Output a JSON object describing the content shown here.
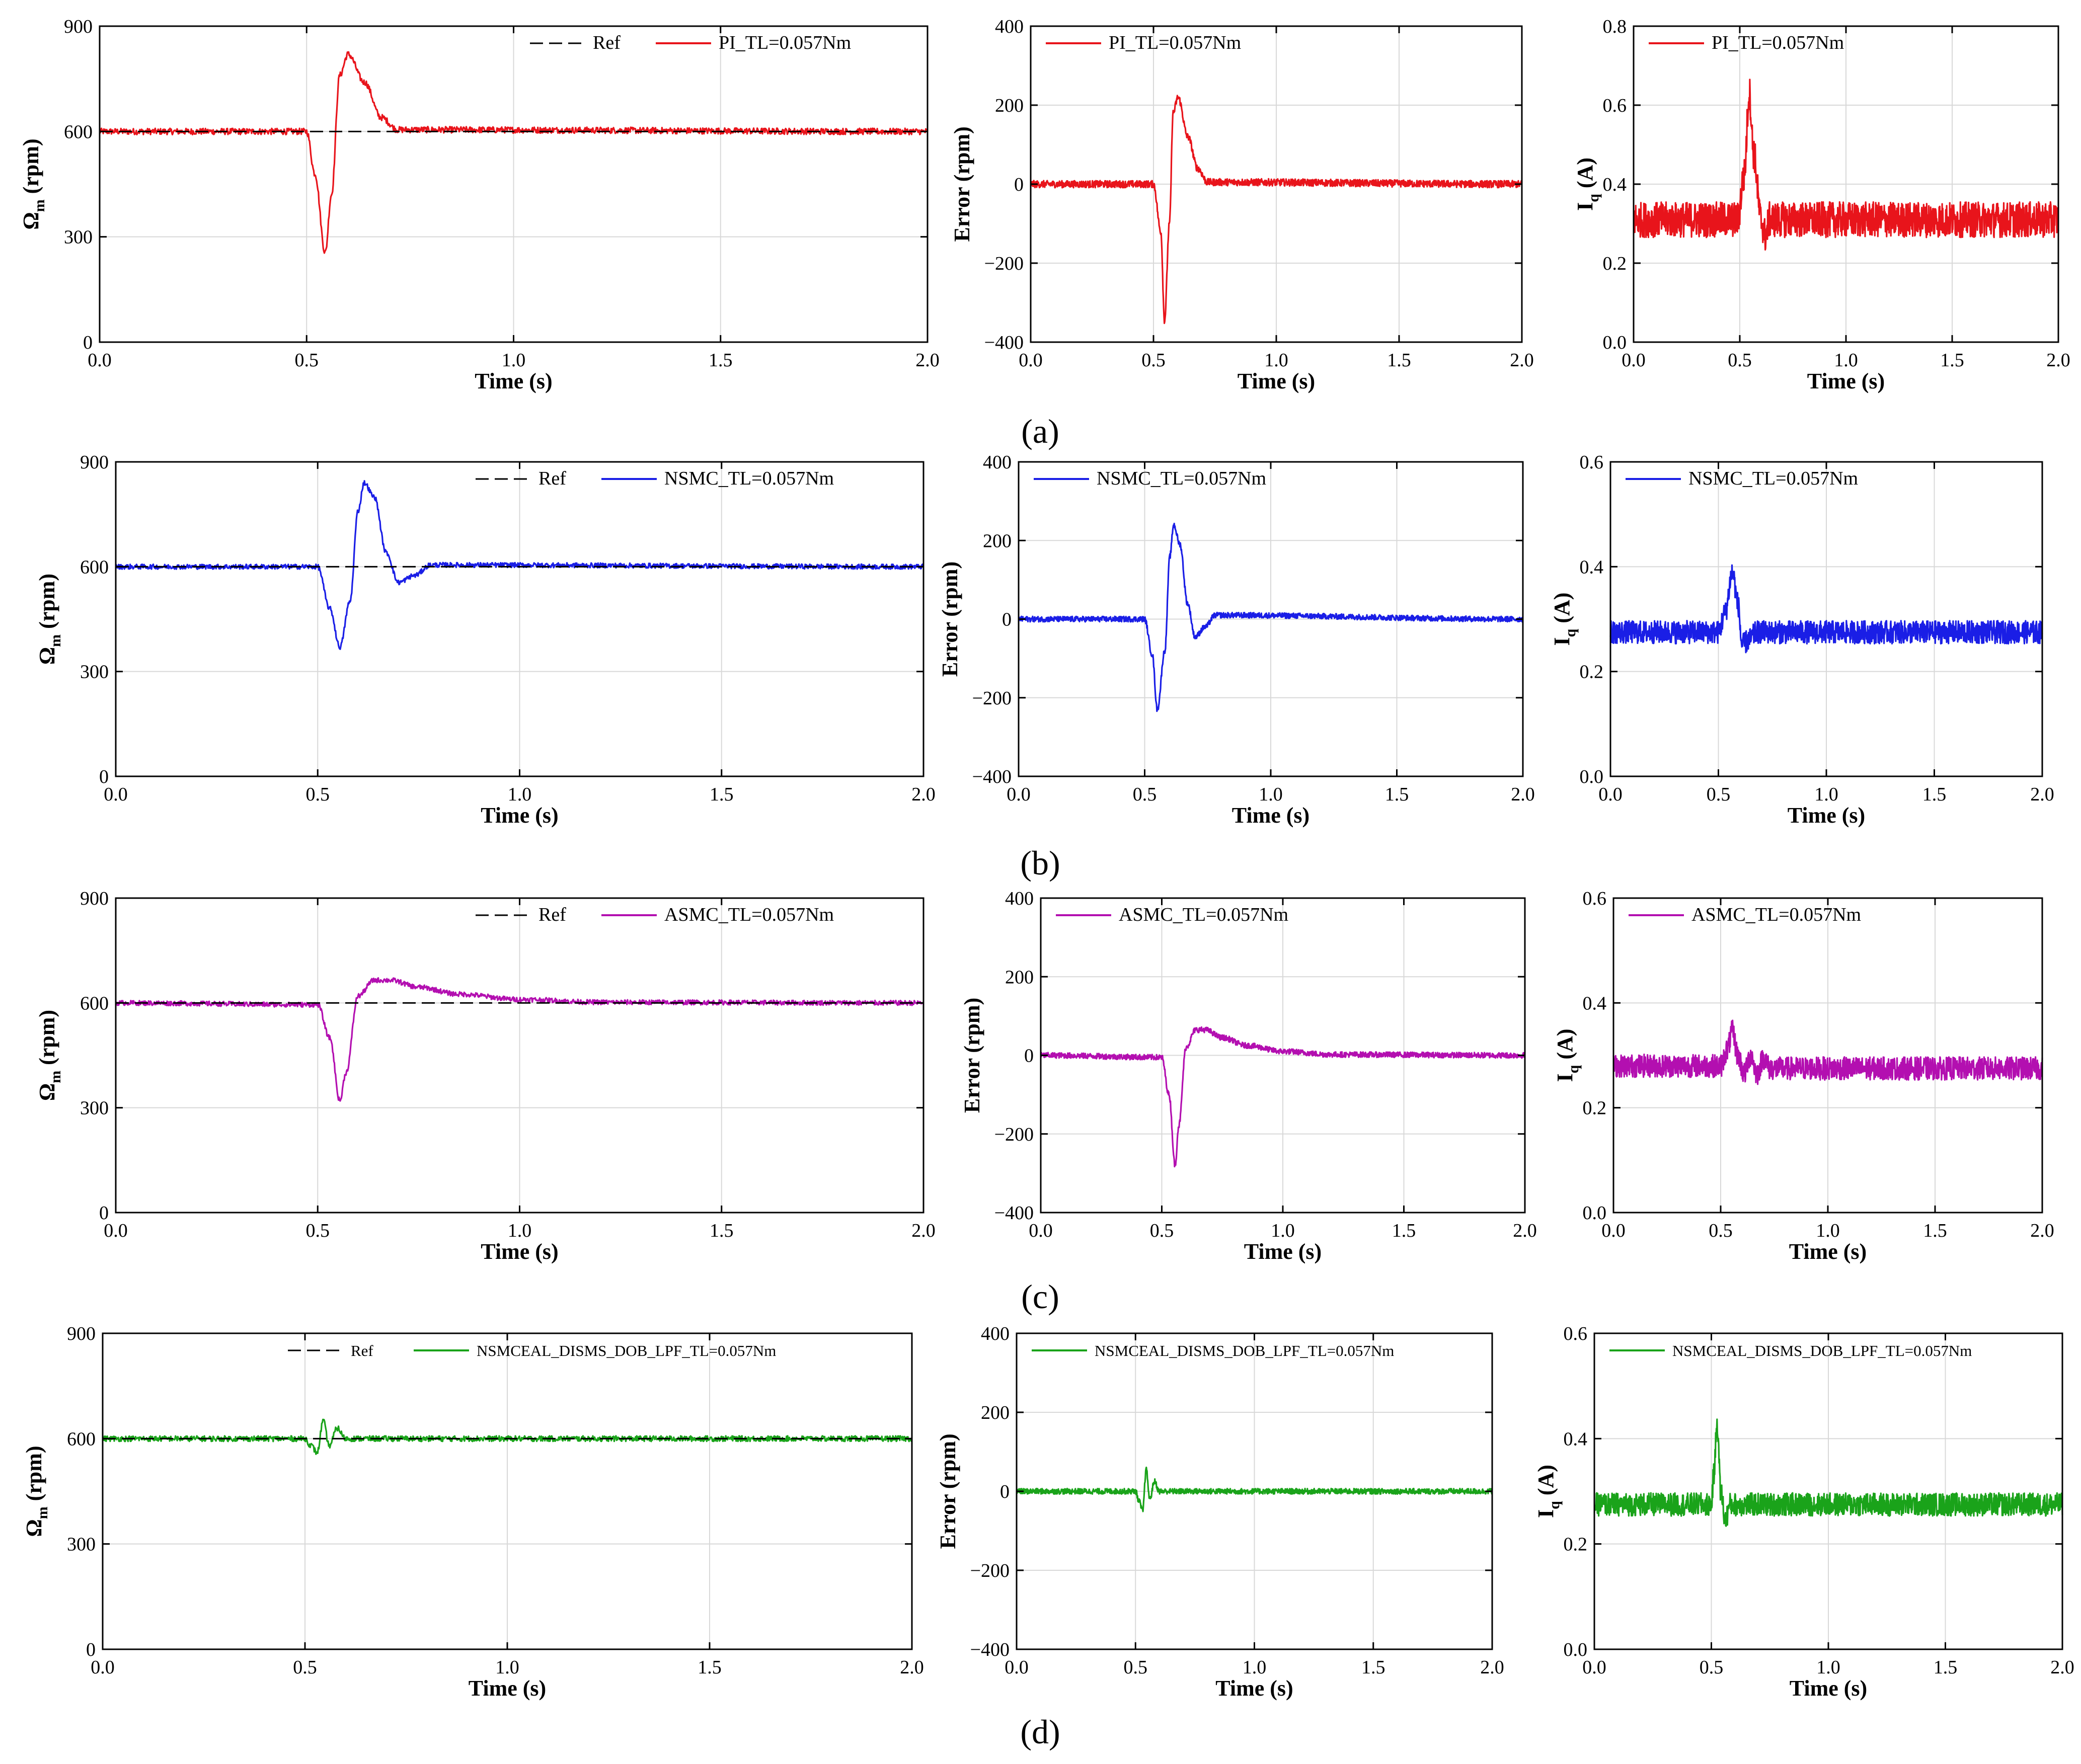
{
  "colors": {
    "PI": "#e8141b",
    "NSMC": "#1a1ee6",
    "ASMC": "#b30fb0",
    "NSMCEAL": "#1aa31a",
    "ref": "#000000",
    "grid": "#d8d8d8"
  },
  "chart_data": [
    {
      "type": "line",
      "row": "a",
      "panel": "speed",
      "xlabel": "Time (s)",
      "ylabel_main": "Ω",
      "ylabel_sub": "m",
      "ylabel_rest": " (rpm)",
      "xlim": [
        0,
        2
      ],
      "ylim": [
        0,
        900
      ],
      "xticks": [
        "0.0",
        "0.5",
        "1.0",
        "1.5",
        "2.0"
      ],
      "yticks": [
        "0",
        "300",
        "600",
        "900"
      ],
      "series": [
        {
          "name": "Ref",
          "kind": "ref",
          "values": [
            600
          ]
        },
        {
          "name": "PI_TL=0.057Nm",
          "controller": "PI",
          "baseline": 600,
          "noise": 9,
          "x": [
            0,
            0.5,
            0.52,
            0.545,
            0.56,
            0.58,
            0.6,
            0.64,
            0.68,
            0.72,
            2.0
          ],
          "y": [
            600,
            600,
            480,
            255,
            420,
            760,
            820,
            740,
            640,
            605,
            600
          ]
        }
      ]
    },
    {
      "type": "line",
      "row": "a",
      "panel": "error",
      "xlabel": "Time (s)",
      "ylabel_main": "Error (rpm)",
      "xlim": [
        0,
        2
      ],
      "ylim": [
        -400,
        400
      ],
      "xticks": [
        "0.0",
        "0.5",
        "1.0",
        "1.5",
        "2.0"
      ],
      "yticks": [
        "-400",
        "-200",
        "0",
        "200",
        "400"
      ],
      "series": [
        {
          "name": "PI_TL=0.057Nm",
          "controller": "PI",
          "baseline": 0,
          "noise": 9,
          "x": [
            0,
            0.5,
            0.53,
            0.545,
            0.565,
            0.58,
            0.6,
            0.64,
            0.68,
            0.72,
            2.0
          ],
          "y": [
            0,
            0,
            -120,
            -345,
            -100,
            180,
            220,
            120,
            40,
            5,
            0
          ]
        }
      ]
    },
    {
      "type": "line",
      "row": "a",
      "panel": "current",
      "xlabel": "Time (s)",
      "ylabel_main": "I",
      "ylabel_sub": "q",
      "ylabel_rest": " (A)",
      "xlim": [
        0,
        2
      ],
      "ylim": [
        0,
        0.8
      ],
      "xticks": [
        "0.0",
        "0.5",
        "1.0",
        "1.5",
        "2.0"
      ],
      "yticks": [
        "0.0",
        "0.2",
        "0.4",
        "0.6",
        "0.8"
      ],
      "series": [
        {
          "name": "PI_TL=0.057Nm",
          "controller": "PI",
          "baseline": 0.31,
          "noise": 0.045,
          "x": [
            0,
            0.49,
            0.52,
            0.545,
            0.565,
            0.6,
            0.62,
            0.64,
            2.0
          ],
          "y": [
            0.31,
            0.31,
            0.42,
            0.63,
            0.48,
            0.31,
            0.27,
            0.31,
            0.31
          ]
        }
      ]
    },
    {
      "type": "line",
      "row": "b",
      "panel": "speed",
      "xlabel": "Time (s)",
      "ylabel_main": "Ω",
      "ylabel_sub": "m",
      "ylabel_rest": " (rpm)",
      "xlim": [
        0,
        2
      ],
      "ylim": [
        0,
        900
      ],
      "xticks": [
        "0.0",
        "0.5",
        "1.0",
        "1.5",
        "2.0"
      ],
      "yticks": [
        "0",
        "300",
        "600",
        "900"
      ],
      "series": [
        {
          "name": "Ref",
          "kind": "ref",
          "values": [
            600
          ]
        },
        {
          "name": "NSMC_TL=0.057Nm",
          "controller": "NSMC",
          "baseline": 600,
          "noise": 7,
          "x": [
            0,
            0.5,
            0.53,
            0.555,
            0.58,
            0.6,
            0.615,
            0.64,
            0.67,
            0.7,
            0.74,
            0.78,
            2.0
          ],
          "y": [
            600,
            600,
            480,
            370,
            500,
            760,
            840,
            800,
            640,
            555,
            575,
            605,
            600
          ]
        }
      ]
    },
    {
      "type": "line",
      "row": "b",
      "panel": "error",
      "xlabel": "Time (s)",
      "ylabel_main": "Error (rpm)",
      "xlim": [
        0,
        2
      ],
      "ylim": [
        -400,
        400
      ],
      "xticks": [
        "0.0",
        "0.5",
        "1.0",
        "1.5",
        "2.0"
      ],
      "yticks": [
        "-400",
        "-200",
        "0",
        "200",
        "400"
      ],
      "series": [
        {
          "name": "NSMC_TL=0.057Nm",
          "controller": "NSMC",
          "baseline": 0,
          "noise": 7,
          "x": [
            0,
            0.5,
            0.53,
            0.55,
            0.58,
            0.6,
            0.615,
            0.64,
            0.67,
            0.7,
            0.74,
            0.78,
            2.0
          ],
          "y": [
            0,
            0,
            -90,
            -230,
            -80,
            160,
            240,
            190,
            40,
            -45,
            -20,
            10,
            0
          ]
        }
      ]
    },
    {
      "type": "line",
      "row": "b",
      "panel": "current",
      "xlabel": "Time (s)",
      "ylabel_main": "I",
      "ylabel_sub": "q",
      "ylabel_rest": " (A)",
      "xlim": [
        0,
        2
      ],
      "ylim": [
        0,
        0.6
      ],
      "xticks": [
        "0.0",
        "0.5",
        "1.0",
        "1.5",
        "2.0"
      ],
      "yticks": [
        "0.0",
        "0.2",
        "0.4",
        "0.6"
      ],
      "series": [
        {
          "name": "NSMC_TL=0.057Nm",
          "controller": "NSMC",
          "baseline": 0.275,
          "noise": 0.022,
          "x": [
            0,
            0.5,
            0.53,
            0.565,
            0.59,
            0.61,
            0.64,
            0.68,
            2.0
          ],
          "y": [
            0.275,
            0.275,
            0.31,
            0.39,
            0.33,
            0.25,
            0.26,
            0.275,
            0.275
          ]
        }
      ]
    },
    {
      "type": "line",
      "row": "c",
      "panel": "speed",
      "xlabel": "Time (s)",
      "ylabel_main": "Ω",
      "ylabel_sub": "m",
      "ylabel_rest": " (rpm)",
      "xlim": [
        0,
        2
      ],
      "ylim": [
        0,
        900
      ],
      "xticks": [
        "0.0",
        "0.5",
        "1.0",
        "1.5",
        "2.0"
      ],
      "yticks": [
        "0",
        "300",
        "600",
        "900"
      ],
      "series": [
        {
          "name": "Ref",
          "kind": "ref",
          "values": [
            600
          ]
        },
        {
          "name": "ASMC_TL=0.057Nm",
          "controller": "ASMC",
          "baseline": 600,
          "noise": 7,
          "x": [
            0,
            0.5,
            0.53,
            0.555,
            0.57,
            0.6,
            0.64,
            0.68,
            0.75,
            0.85,
            1.0,
            1.2,
            2.0
          ],
          "y": [
            600,
            595,
            500,
            320,
            400,
            620,
            665,
            665,
            645,
            625,
            610,
            602,
            600
          ]
        }
      ]
    },
    {
      "type": "line",
      "row": "c",
      "panel": "error",
      "xlabel": "Time (s)",
      "ylabel_main": "Error (rpm)",
      "xlim": [
        0,
        2
      ],
      "ylim": [
        -400,
        400
      ],
      "xticks": [
        "0.0",
        "0.5",
        "1.0",
        "1.5",
        "2.0"
      ],
      "yticks": [
        "-400",
        "-200",
        "0",
        "200",
        "400"
      ],
      "series": [
        {
          "name": "ASMC_TL=0.057Nm",
          "controller": "ASMC",
          "baseline": 0,
          "noise": 7,
          "x": [
            0,
            0.5,
            0.53,
            0.555,
            0.57,
            0.6,
            0.64,
            0.68,
            0.75,
            0.85,
            1.0,
            1.2,
            2.0
          ],
          "y": [
            0,
            -5,
            -100,
            -280,
            -180,
            20,
            65,
            65,
            45,
            25,
            10,
            2,
            0
          ]
        }
      ]
    },
    {
      "type": "line",
      "row": "c",
      "panel": "current",
      "xlabel": "Time (s)",
      "ylabel_main": "I",
      "ylabel_sub": "q",
      "ylabel_rest": " (A)",
      "xlim": [
        0,
        2
      ],
      "ylim": [
        0,
        0.6
      ],
      "xticks": [
        "0.0",
        "0.5",
        "1.0",
        "1.5",
        "2.0"
      ],
      "yticks": [
        "0.0",
        "0.2",
        "0.4",
        "0.6"
      ],
      "series": [
        {
          "name": "ASMC_TL=0.057Nm",
          "controller": "ASMC",
          "baseline": 0.28,
          "noise": 0.022,
          "x": [
            0,
            0.5,
            0.53,
            0.555,
            0.58,
            0.61,
            0.64,
            0.67,
            0.7,
            0.73,
            2.0
          ],
          "y": [
            0.28,
            0.28,
            0.31,
            0.345,
            0.3,
            0.265,
            0.3,
            0.265,
            0.295,
            0.275,
            0.275
          ]
        }
      ]
    },
    {
      "type": "line",
      "row": "d",
      "panel": "speed",
      "xlabel": "Time (s)",
      "ylabel_main": "Ω",
      "ylabel_sub": "m",
      "ylabel_rest": " (rpm)",
      "xlim": [
        0,
        2
      ],
      "ylim": [
        0,
        900
      ],
      "xticks": [
        "0.0",
        "0.5",
        "1.0",
        "1.5",
        "2.0"
      ],
      "yticks": [
        "0",
        "300",
        "600",
        "900"
      ],
      "series": [
        {
          "name": "Ref",
          "kind": "ref",
          "values": [
            600
          ]
        },
        {
          "name": "NSMCEAL_DISMS_DOB_LPF_TL=0.057Nm",
          "controller": "NSMCEAL",
          "baseline": 600,
          "noise": 8,
          "x": [
            0,
            0.5,
            0.515,
            0.53,
            0.545,
            0.56,
            0.58,
            0.6,
            2.0
          ],
          "y": [
            600,
            600,
            580,
            560,
            650,
            580,
            630,
            600,
            600
          ]
        }
      ]
    },
    {
      "type": "line",
      "row": "d",
      "panel": "error",
      "xlabel": "Time (s)",
      "ylabel_main": "Error (rpm)",
      "xlim": [
        0,
        2
      ],
      "ylim": [
        -400,
        400
      ],
      "xticks": [
        "0.0",
        "0.5",
        "1.0",
        "1.5",
        "2.0"
      ],
      "yticks": [
        "-400",
        "-200",
        "0",
        "200",
        "400"
      ],
      "series": [
        {
          "name": "NSMCEAL_DISMS_DOB_LPF_TL=0.057Nm",
          "controller": "NSMCEAL",
          "baseline": 0,
          "noise": 7,
          "x": [
            0,
            0.5,
            0.515,
            0.53,
            0.545,
            0.56,
            0.58,
            0.6,
            2.0
          ],
          "y": [
            0,
            0,
            -25,
            -50,
            55,
            -20,
            25,
            0,
            0
          ]
        }
      ]
    },
    {
      "type": "line",
      "row": "d",
      "panel": "current",
      "xlabel": "Time (s)",
      "ylabel_main": "I",
      "ylabel_sub": "q",
      "ylabel_rest": " (A)",
      "xlim": [
        0,
        2
      ],
      "ylim": [
        0,
        0.6
      ],
      "xticks": [
        "0.0",
        "0.5",
        "1.0",
        "1.5",
        "2.0"
      ],
      "yticks": [
        "0.0",
        "0.2",
        "0.4",
        "0.6"
      ],
      "series": [
        {
          "name": "NSMCEAL_DISMS_DOB_LPF_TL=0.057Nm",
          "controller": "NSMCEAL",
          "baseline": 0.275,
          "noise": 0.022,
          "x": [
            0,
            0.5,
            0.51,
            0.525,
            0.54,
            0.56,
            0.58,
            0.62,
            2.0
          ],
          "y": [
            0.275,
            0.275,
            0.33,
            0.43,
            0.3,
            0.245,
            0.275,
            0.275,
            0.275
          ]
        }
      ]
    }
  ],
  "captions": [
    "(a)",
    "(b)",
    "(c)",
    "(d)"
  ]
}
